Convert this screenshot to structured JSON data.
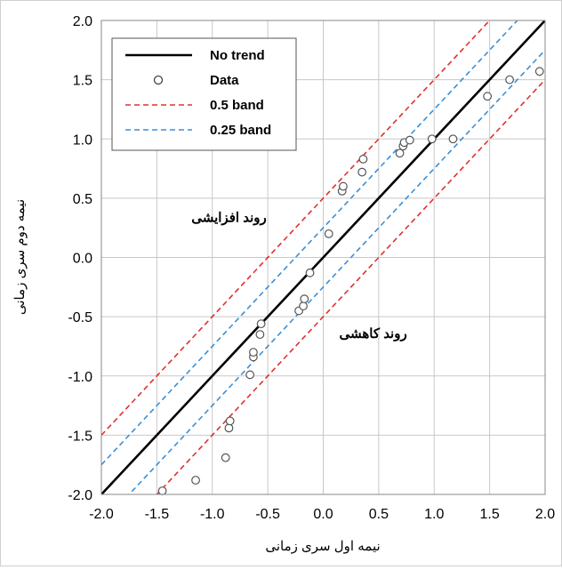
{
  "chart_data": {
    "type": "scatter",
    "xlim": [
      -2.0,
      2.0
    ],
    "ylim": [
      -2.0,
      2.0
    ],
    "x_ticks": [
      "-2.0",
      "-1.5",
      "-1.0",
      "-0.5",
      "0.0",
      "0.5",
      "1.0",
      "1.5",
      "2.0"
    ],
    "y_ticks": [
      "-2.0",
      "-1.5",
      "-1.0",
      "-0.5",
      "0.0",
      "0.5",
      "1.0",
      "1.5",
      "2.0"
    ],
    "xlabel": "نیمه اول سری زمانی",
    "ylabel": "نیمه دوم سری زمانی",
    "grid": true,
    "legend_position": "top-left",
    "legend": [
      {
        "label": "No trend",
        "style": "solid",
        "color": "#000000"
      },
      {
        "label": "Data",
        "style": "marker",
        "color": "#000000"
      },
      {
        "label": "0.5 band",
        "style": "dashed",
        "color": "#e03030"
      },
      {
        "label": "0.25 band",
        "style": "dashed",
        "color": "#3a8fd6"
      }
    ],
    "lines": [
      {
        "offset": 0,
        "color": "#000000",
        "dash": false
      },
      {
        "offset": 0.5,
        "color": "#e03030",
        "dash": true
      },
      {
        "offset": -0.5,
        "color": "#e03030",
        "dash": true
      },
      {
        "offset": 0.25,
        "color": "#3a8fd6",
        "dash": true
      },
      {
        "offset": -0.25,
        "color": "#3a8fd6",
        "dash": true
      }
    ],
    "annotations": [
      {
        "text": "روند افزایشی",
        "x": -0.85,
        "y": 0.3
      },
      {
        "text": "روند کاهشی",
        "x": 0.45,
        "y": -0.68
      }
    ],
    "points": [
      {
        "x": -1.45,
        "y": -1.97
      },
      {
        "x": -1.15,
        "y": -1.88
      },
      {
        "x": -0.88,
        "y": -1.69
      },
      {
        "x": -0.85,
        "y": -1.44
      },
      {
        "x": -0.84,
        "y": -1.38
      },
      {
        "x": -0.66,
        "y": -0.99
      },
      {
        "x": -0.63,
        "y": -0.84
      },
      {
        "x": -0.63,
        "y": -0.8
      },
      {
        "x": -0.57,
        "y": -0.65
      },
      {
        "x": -0.56,
        "y": -0.56
      },
      {
        "x": -0.22,
        "y": -0.45
      },
      {
        "x": -0.18,
        "y": -0.41
      },
      {
        "x": -0.17,
        "y": -0.35
      },
      {
        "x": -0.12,
        "y": -0.13
      },
      {
        "x": 0.05,
        "y": 0.2
      },
      {
        "x": 0.17,
        "y": 0.56
      },
      {
        "x": 0.18,
        "y": 0.6
      },
      {
        "x": 0.35,
        "y": 0.72
      },
      {
        "x": 0.36,
        "y": 0.83
      },
      {
        "x": 0.69,
        "y": 0.88
      },
      {
        "x": 0.72,
        "y": 0.94
      },
      {
        "x": 0.73,
        "y": 0.97
      },
      {
        "x": 0.78,
        "y": 0.99
      },
      {
        "x": 0.98,
        "y": 1.0
      },
      {
        "x": 1.17,
        "y": 1.0
      },
      {
        "x": 1.48,
        "y": 1.36
      },
      {
        "x": 1.68,
        "y": 1.5
      },
      {
        "x": 1.95,
        "y": 1.57
      }
    ]
  }
}
